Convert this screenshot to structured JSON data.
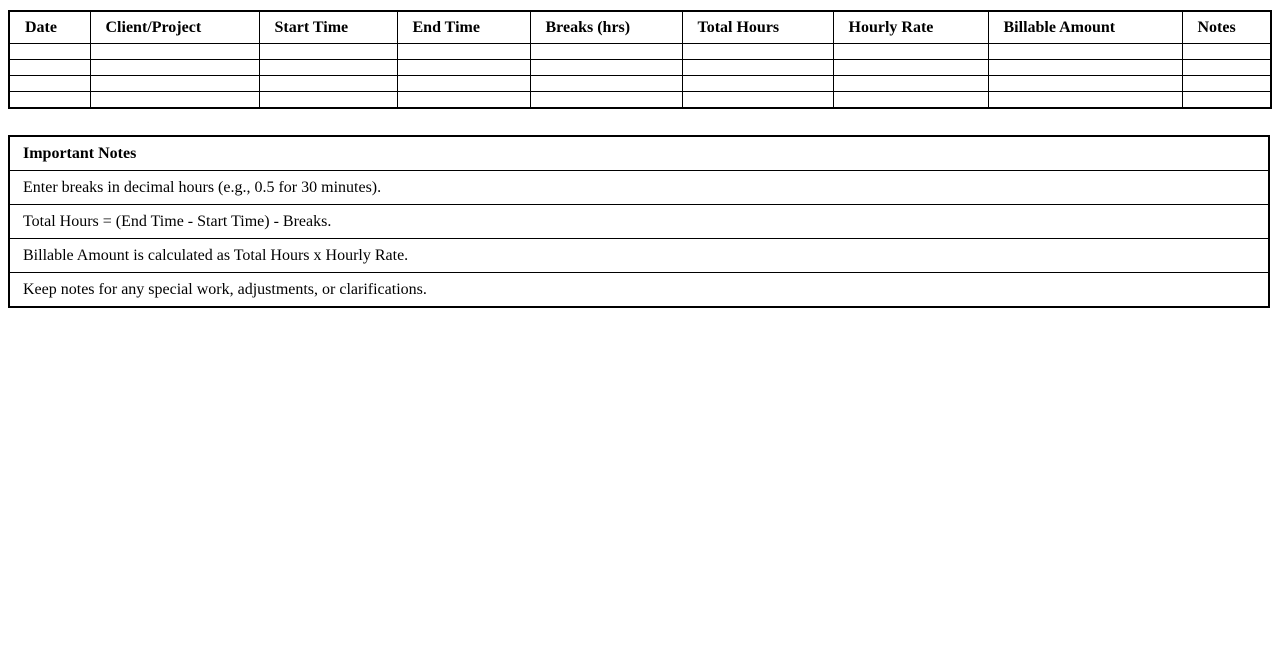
{
  "timesheet_table": {
    "columns": [
      {
        "label": "Date"
      },
      {
        "label": "Client/Project"
      },
      {
        "label": "Start Time"
      },
      {
        "label": "End Time"
      },
      {
        "label": "Breaks (hrs)"
      },
      {
        "label": "Total Hours"
      },
      {
        "label": "Hourly Rate"
      },
      {
        "label": "Billable Amount"
      },
      {
        "label": "Notes"
      }
    ],
    "rows": [
      [
        "",
        "",
        "",
        "",
        "",
        "",
        "",
        "",
        ""
      ],
      [
        "",
        "",
        "",
        "",
        "",
        "",
        "",
        "",
        ""
      ],
      [
        "",
        "",
        "",
        "",
        "",
        "",
        "",
        "",
        ""
      ],
      [
        "",
        "",
        "",
        "",
        "",
        "",
        "",
        "",
        ""
      ]
    ]
  },
  "notes_table": {
    "header": "Important Notes",
    "items": [
      "Enter breaks in decimal hours (e.g., 0.5 for 30 minutes).",
      "Total Hours = (End Time - Start Time) - Breaks.",
      "Billable Amount is calculated as Total Hours x Hourly Rate.",
      "Keep notes for any special work, adjustments, or clarifications."
    ]
  },
  "colors": {
    "border": "#000000",
    "background": "#ffffff",
    "text": "#000000"
  }
}
